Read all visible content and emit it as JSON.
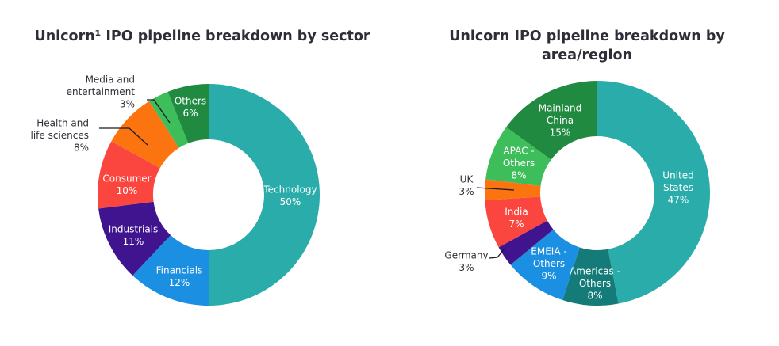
{
  "chart_data": [
    {
      "type": "pie",
      "title": "Unicorn¹ IPO pipeline breakdown by sector",
      "slices": [
        {
          "label": [
            "Technology"
          ],
          "pct": "50%",
          "value": 50,
          "color": "#2aadaa"
        },
        {
          "label": [
            "Financials"
          ],
          "pct": "12%",
          "value": 12,
          "color": "#1b8fe2"
        },
        {
          "label": [
            "Industrials"
          ],
          "pct": "11%",
          "value": 11,
          "color": "#3f148e"
        },
        {
          "label": [
            "Consumer"
          ],
          "pct": "10%",
          "value": 10,
          "color": "#fb4640"
        },
        {
          "label": [
            "Health and",
            "life sciences"
          ],
          "pct": "8%",
          "value": 8,
          "color": "#fb7410"
        },
        {
          "label": [
            "Media and",
            "entertainment"
          ],
          "pct": "3%",
          "value": 3,
          "color": "#3ebe5a"
        },
        {
          "label": [
            "Others"
          ],
          "pct": "6%",
          "value": 6,
          "color": "#208b40"
        }
      ]
    },
    {
      "type": "pie",
      "title": "Unicorn IPO pipeline breakdown by area/region",
      "slices": [
        {
          "label": [
            "United",
            "States"
          ],
          "pct": "47%",
          "value": 47,
          "color": "#2aadaa"
        },
        {
          "label": [
            "Americas -",
            "Others"
          ],
          "pct": "8%",
          "value": 8,
          "color": "#157b78"
        },
        {
          "label": [
            "EMEIA -",
            "Others"
          ],
          "pct": "9%",
          "value": 9,
          "color": "#1b8fe2"
        },
        {
          "label": [
            "Germany"
          ],
          "pct": "3%",
          "value": 3,
          "color": "#3f148e"
        },
        {
          "label": [
            "India"
          ],
          "pct": "7%",
          "value": 7,
          "color": "#fb4640"
        },
        {
          "label": [
            "UK"
          ],
          "pct": "3%",
          "value": 3,
          "color": "#fb7410"
        },
        {
          "label": [
            "APAC -",
            "Others"
          ],
          "pct": "8%",
          "value": 8,
          "color": "#3ebe5a"
        },
        {
          "label": [
            "Mainland",
            "China"
          ],
          "pct": "15%",
          "value": 15,
          "color": "#208b40"
        }
      ]
    }
  ]
}
